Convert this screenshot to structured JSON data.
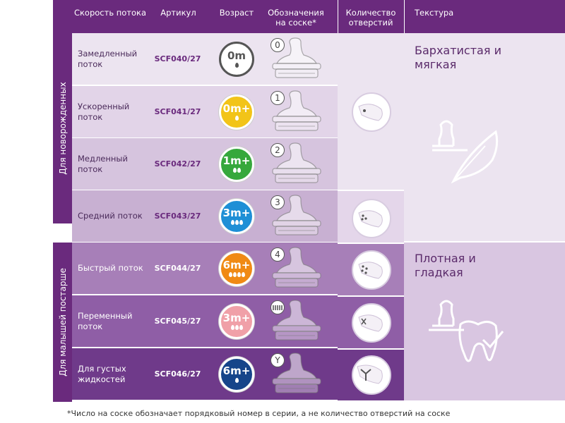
{
  "header": {
    "flow": "Скорость потока",
    "article": "Артикул",
    "age": "Возраст",
    "marks": "Обозначения на соске*",
    "holes": "Количество отверстий",
    "texture": "Текстура"
  },
  "groups": {
    "newborn": "Для новорожденных",
    "older": "Для малышей постарше"
  },
  "rows": [
    {
      "flow": "Замедленный поток",
      "article": "SCF040/27",
      "age": "0m",
      "mark": "0",
      "drops": 1,
      "badge_color": "#ffffff",
      "text_color": "#555555",
      "drop_color": "#555555"
    },
    {
      "flow": "Ускоренный поток",
      "article": "SCF041/27",
      "age": "0m+",
      "mark": "1",
      "drops": 1,
      "badge_color": "#f2c418",
      "text_color": "#ffffff",
      "drop_color": "#ffffff"
    },
    {
      "flow": "Медленный поток",
      "article": "SCF042/27",
      "age": "1m+",
      "mark": "2",
      "drops": 2,
      "badge_color": "#36a83c",
      "text_color": "#ffffff",
      "drop_color": "#ffffff"
    },
    {
      "flow": "Средний поток",
      "article": "SCF043/27",
      "age": "3m+",
      "mark": "3",
      "drops": 3,
      "badge_color": "#1e8fd6",
      "text_color": "#ffffff",
      "drop_color": "#ffffff"
    },
    {
      "flow": "Быстрый поток",
      "article": "SCF044/27",
      "age": "6m+",
      "mark": "4",
      "drops": 4,
      "badge_color": "#f08a14",
      "text_color": "#ffffff",
      "drop_color": "#ffffff"
    },
    {
      "flow": "Переменный поток",
      "article": "SCF045/27",
      "age": "3m+",
      "mark": "",
      "drops": 3,
      "badge_color": "#f0a0a8",
      "text_color": "#ffffff",
      "drop_color": "#ffffff"
    },
    {
      "flow": "Для густых жидкостей",
      "article": "SCF046/27",
      "age": "6m+",
      "mark": "Y",
      "drops": 1,
      "badge_color": "#16458a",
      "text_color": "#ffffff",
      "drop_color": "#ffffff"
    }
  ],
  "texture": {
    "soft": "Бархатистая и мягкая",
    "firm": "Плотная и гладкая"
  },
  "footnote": "*Число на соске обозначает порядковый номер в серии, а не количество отверстий на соске",
  "colors": {
    "header": "#6a2a7d",
    "row_bg": [
      "#ece4f0",
      "#e2d4e8",
      "#d6c4de",
      "#c8b0d2",
      "#a77fb8",
      "#8f5ea6",
      "#6f3a8a"
    ],
    "flow_text": [
      "#4a2a5a",
      "#4a2a5a",
      "#4a2a5a",
      "#4a2a5a",
      "#ffffff",
      "#ffffff",
      "#ffffff"
    ],
    "article_text": [
      "#6a2a7d",
      "#6a2a7d",
      "#6a2a7d",
      "#6a2a7d",
      "#ffffff",
      "#ffffff",
      "#ffffff"
    ]
  }
}
